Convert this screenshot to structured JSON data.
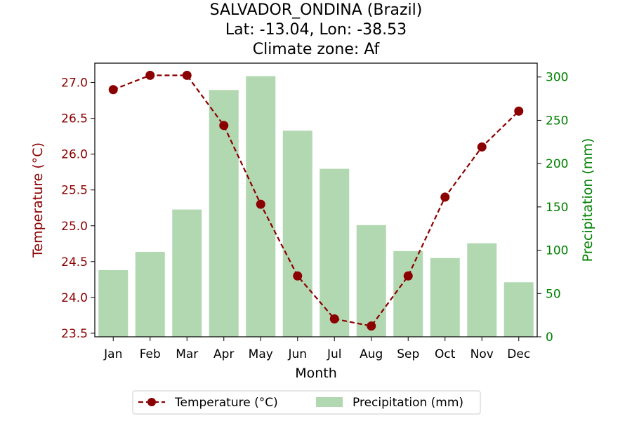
{
  "chart_data": {
    "type": "bar+line",
    "title_lines": [
      "SALVADOR_ONDINA (Brazil)",
      "Lat: -13.04, Lon: -38.53",
      "Climate zone: Af"
    ],
    "xlabel": "Month",
    "categories": [
      "Jan",
      "Feb",
      "Mar",
      "Apr",
      "May",
      "Jun",
      "Jul",
      "Aug",
      "Sep",
      "Oct",
      "Nov",
      "Dec"
    ],
    "y_left": {
      "label": "Temperature (°C)",
      "ylim": [
        23.45,
        27.27
      ],
      "ticks": [
        23.5,
        24.0,
        24.5,
        25.0,
        25.5,
        26.0,
        26.5,
        27.0
      ],
      "tick_labels": [
        "23.5",
        "24.0",
        "24.5",
        "25.0",
        "25.5",
        "26.0",
        "26.5",
        "27.0"
      ]
    },
    "y_right": {
      "label": "Precipitation (mm)",
      "ylim": [
        0,
        316
      ],
      "ticks": [
        0,
        50,
        100,
        150,
        200,
        250,
        300
      ],
      "tick_labels": [
        "0",
        "50",
        "100",
        "150",
        "200",
        "250",
        "300"
      ]
    },
    "series": [
      {
        "name": "Temperature (°C)",
        "kind": "line",
        "axis": "left",
        "style": "dashed, circle markers",
        "color": "#8b0000",
        "values": [
          26.9,
          27.1,
          27.1,
          26.4,
          25.3,
          24.3,
          23.7,
          23.6,
          24.3,
          25.4,
          26.1,
          26.6
        ]
      },
      {
        "name": "Precipitation (mm)",
        "kind": "bar",
        "axis": "right",
        "color": "#b2d8b2",
        "values": [
          77,
          98,
          147,
          285,
          301,
          238,
          194,
          129,
          99,
          91,
          108,
          63
        ]
      }
    ],
    "legend_position": "bottom-center",
    "grid": false,
    "colors": {
      "temperature_axis": "#8b0000",
      "precipitation_axis": "#008000"
    }
  }
}
